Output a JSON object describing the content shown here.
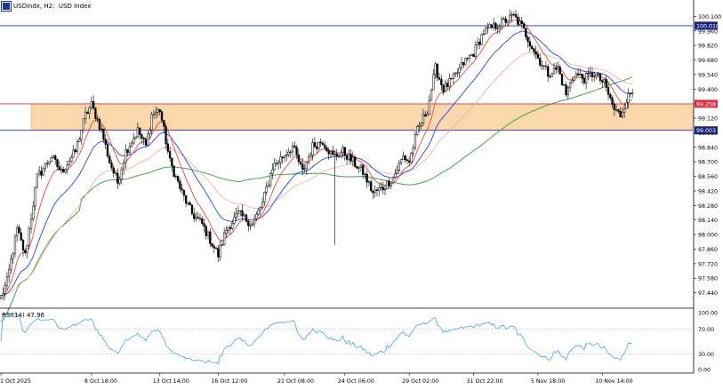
{
  "header": {
    "symbol_title": "USDindx, H2:  USD Index"
  },
  "rsi_panel": {
    "title": "RSI(14) 47.96"
  },
  "colors": {
    "candle": "#000000",
    "ema_fast": "#e8463c",
    "ema_mid": "#2f3fe0",
    "ema_slow_light": "#f2a79e",
    "ema_long": "#2e9a3a",
    "zone_fill": "#fbd7ae",
    "hline_blue": "#2233bb",
    "hline_red": "#d83040",
    "rsi_line": "#4aa0e6",
    "label_blue_bg": "#1a237e",
    "label_red_bg": "#d83040"
  },
  "chart_data": [
    {
      "type": "candlestick",
      "timeframe": "H2",
      "ylim": [
        97.3,
        100.24
      ],
      "y_ticks": [
        "100.100",
        "99.960",
        "99.820",
        "99.680",
        "99.540",
        "99.400",
        "99.260",
        "99.120",
        "98.980",
        "98.840",
        "98.700",
        "98.560",
        "98.420",
        "98.280",
        "98.140",
        "98.000",
        "97.860",
        "97.720",
        "97.580",
        "97.440"
      ],
      "x_ticks": [
        "1 Oct 2025",
        "8 Oct 18:00",
        "13 Oct 14:00",
        "16 Oct 12:00",
        "21 Oct 08:00",
        "24 Oct 06:00",
        "29 Oct 02:00",
        "31 Oct 22:00",
        "5 Nov 18:00",
        "10 Nov 14:00"
      ],
      "x_tick_index": [
        0,
        45,
        79,
        108,
        141,
        171,
        203,
        235,
        267,
        299
      ],
      "horizontal_lines": [
        {
          "value": 100.01,
          "label": "100.010",
          "color": "blue"
        },
        {
          "value": 99.258,
          "label": "99.258",
          "color": "red"
        },
        {
          "value": 99.003,
          "label": "99.003",
          "color": "blue"
        }
      ],
      "zone": {
        "from": 99.003,
        "to": 99.258,
        "x_from_index": 15,
        "x_to_index": 344
      },
      "price_path": [
        [
          0,
          97.4
        ],
        [
          3,
          97.55
        ],
        [
          8,
          98.05
        ],
        [
          12,
          97.8
        ],
        [
          18,
          98.55
        ],
        [
          25,
          98.75
        ],
        [
          30,
          98.6
        ],
        [
          37,
          98.8
        ],
        [
          42,
          99.15
        ],
        [
          45,
          99.25
        ],
        [
          50,
          99.0
        ],
        [
          54,
          98.7
        ],
        [
          58,
          98.5
        ],
        [
          62,
          98.8
        ],
        [
          68,
          99.0
        ],
        [
          72,
          98.85
        ],
        [
          75,
          99.15
        ],
        [
          79,
          99.2
        ],
        [
          84,
          98.7
        ],
        [
          90,
          98.4
        ],
        [
          95,
          98.2
        ],
        [
          100,
          98.1
        ],
        [
          104,
          97.95
        ],
        [
          108,
          97.8
        ],
        [
          112,
          98.05
        ],
        [
          118,
          98.2
        ],
        [
          125,
          98.1
        ],
        [
          130,
          98.3
        ],
        [
          135,
          98.65
        ],
        [
          140,
          98.75
        ],
        [
          145,
          98.85
        ],
        [
          150,
          98.6
        ],
        [
          155,
          98.85
        ],
        [
          160,
          98.9
        ],
        [
          165,
          98.75
        ],
        [
          170,
          98.8
        ],
        [
          175,
          98.7
        ],
        [
          180,
          98.6
        ],
        [
          185,
          98.4
        ],
        [
          190,
          98.45
        ],
        [
          195,
          98.55
        ],
        [
          200,
          98.75
        ],
        [
          203,
          98.7
        ],
        [
          207,
          99.0
        ],
        [
          212,
          99.2
        ],
        [
          216,
          99.6
        ],
        [
          220,
          99.4
        ],
        [
          225,
          99.5
        ],
        [
          230,
          99.65
        ],
        [
          235,
          99.75
        ],
        [
          240,
          99.95
        ],
        [
          245,
          100.0
        ],
        [
          250,
          100.05
        ],
        [
          255,
          100.1
        ],
        [
          259,
          100.0
        ],
        [
          263,
          99.85
        ],
        [
          267,
          99.7
        ],
        [
          272,
          99.55
        ],
        [
          277,
          99.6
        ],
        [
          281,
          99.35
        ],
        [
          285,
          99.55
        ],
        [
          290,
          99.5
        ],
        [
          295,
          99.55
        ],
        [
          300,
          99.45
        ],
        [
          305,
          99.2
        ],
        [
          308,
          99.15
        ],
        [
          311,
          99.3
        ],
        [
          314,
          99.38
        ]
      ],
      "spike": {
        "index": 166,
        "low": 97.9
      },
      "moving_averages": [
        {
          "color": "red",
          "period_note": ""
        },
        {
          "color": "blue",
          "period_note": ""
        },
        {
          "color": "light red",
          "period_note": ""
        },
        {
          "color": "green",
          "period_note": ""
        }
      ]
    },
    {
      "type": "line",
      "title": "RSI(14) 47.96",
      "ylim": [
        0,
        100
      ],
      "y_ticks": [
        "100.00",
        "70.00",
        "30.00",
        "0.00"
      ],
      "levels": [
        70,
        30
      ],
      "last_value": 47.96
    }
  ]
}
